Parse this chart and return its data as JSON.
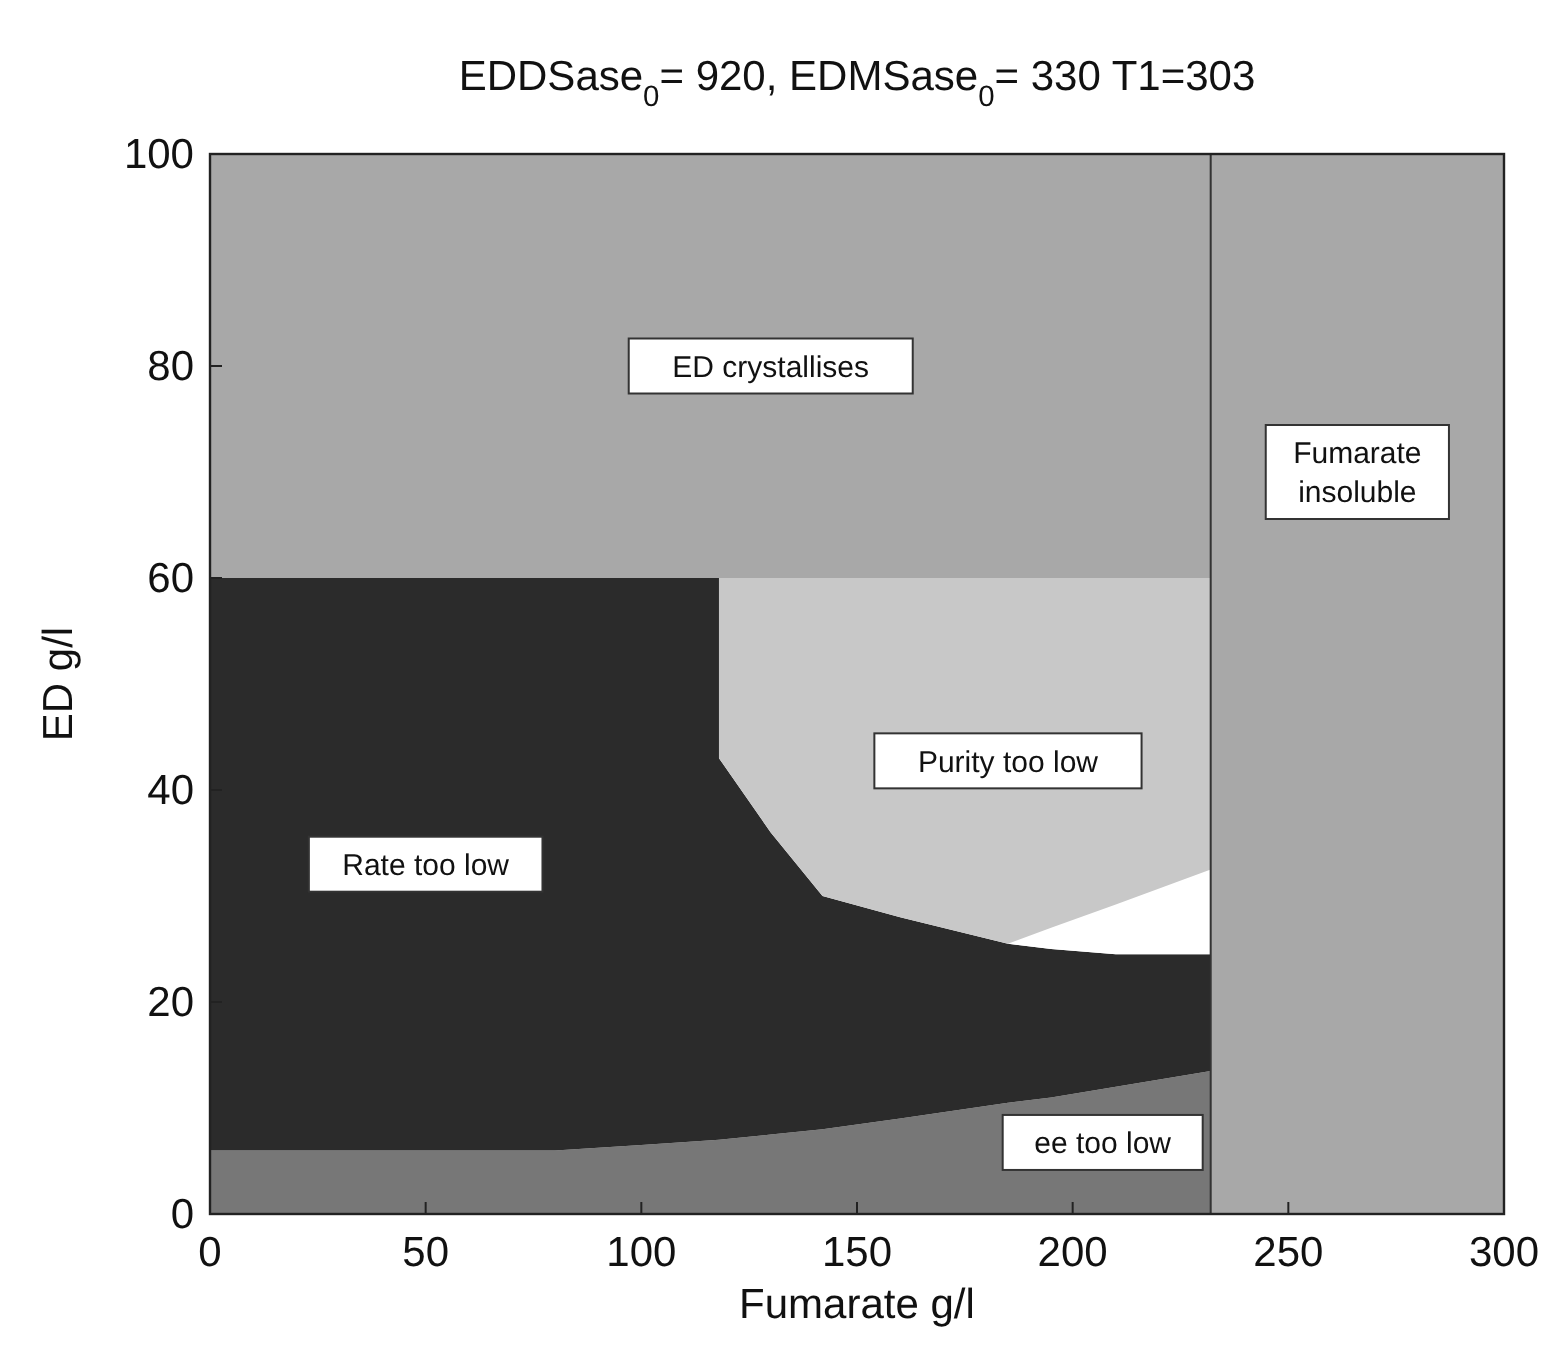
{
  "chart_data": {
    "type": "area",
    "stacked": true,
    "title": "EDDSase$_{0}$= 920, EDMSase$_{0}$= 330 T1=303",
    "xlabel": "Fumarate g/l",
    "ylabel": "ED g/l",
    "x": [
      0,
      20,
      50,
      80,
      100,
      118,
      118,
      130,
      142,
      160,
      185,
      195,
      210,
      232
    ],
    "series": [
      {
        "name": "ee too low",
        "color": "#777777",
        "values": [
          6,
          6,
          6,
          6,
          6.5,
          7,
          7,
          7.5,
          8,
          9,
          10.5,
          11,
          12,
          13.5
        ]
      },
      {
        "name": "Rate too low",
        "color": "#2b2b2b",
        "values": [
          54,
          54,
          54,
          54,
          53.5,
          53,
          36,
          28.5,
          22,
          19,
          15,
          14,
          12.5,
          11
        ]
      },
      {
        "color": "#ffffff",
        "values": [
          0,
          0,
          0,
          0,
          0,
          0,
          0,
          0,
          0,
          0,
          0,
          2,
          4.7,
          8
        ]
      },
      {
        "name": "Purity too low",
        "color": "#c8c8c8",
        "values": [
          0,
          0,
          0,
          0,
          0,
          0,
          17,
          24,
          30,
          32,
          34.5,
          33,
          30.8,
          27.5
        ]
      },
      {
        "name": "ED crystallises",
        "color": "#a8a8a8",
        "values": [
          40,
          40,
          40,
          40,
          40,
          40,
          40,
          40,
          40,
          40,
          40,
          40,
          40,
          40
        ]
      }
    ],
    "bands": [
      {
        "axis": "x",
        "from": 232,
        "to": 300,
        "label": "Fumarate insoluble",
        "color": "#a8a8a8"
      }
    ],
    "xlim": [
      0,
      300
    ],
    "xticks": [
      0,
      50,
      100,
      150,
      200,
      250,
      300
    ],
    "ylim": [
      0,
      100
    ],
    "yticks": [
      0,
      20,
      40,
      60,
      80,
      100
    ],
    "grid": false
  }
}
